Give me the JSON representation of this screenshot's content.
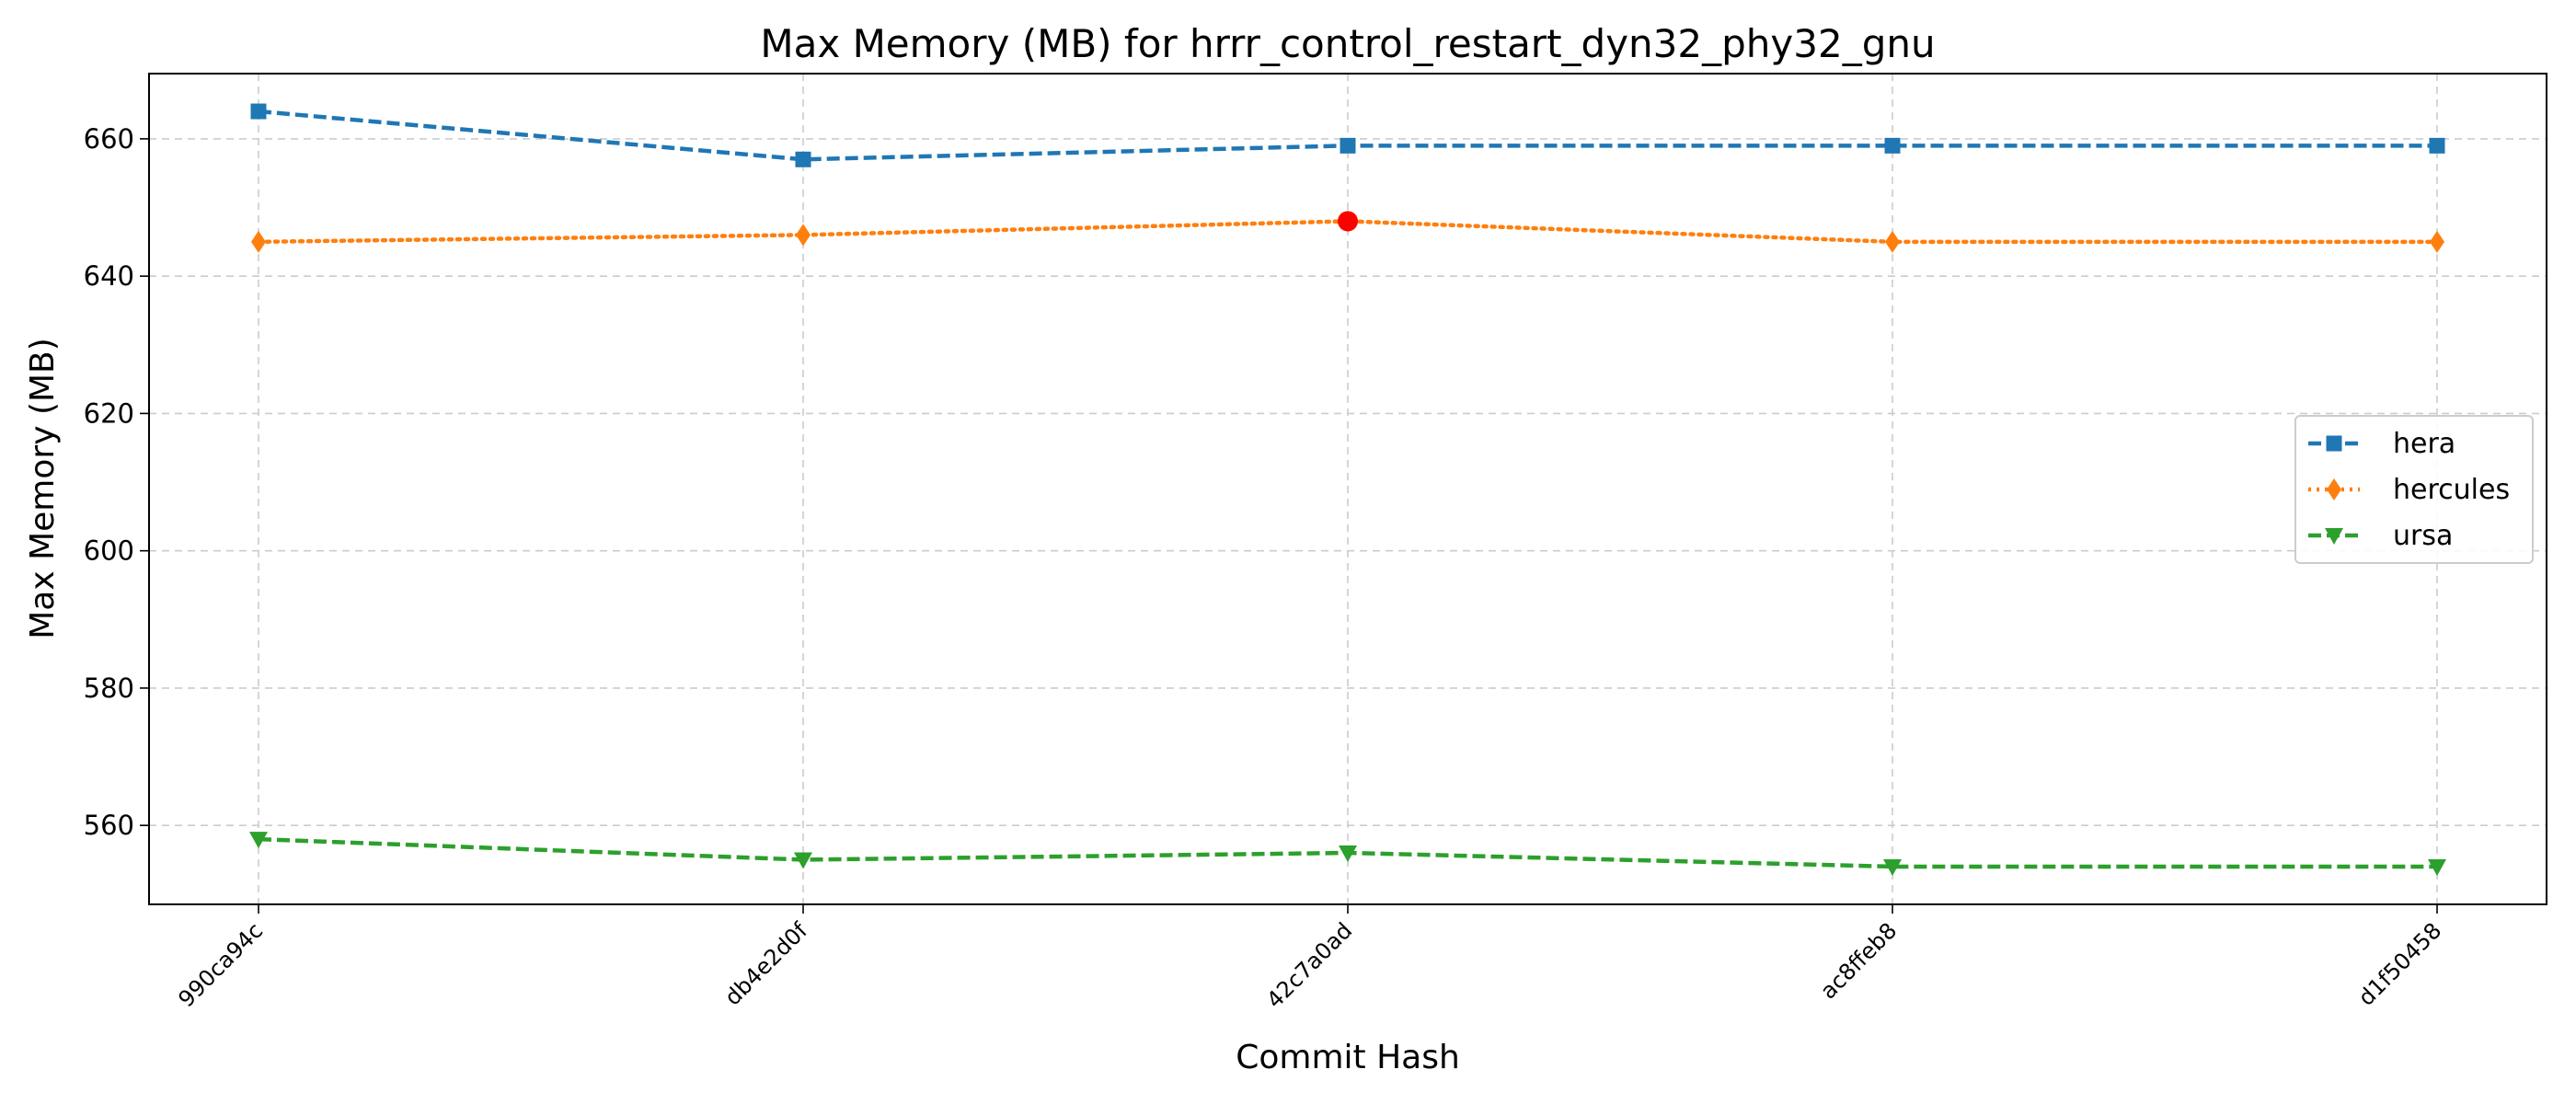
{
  "chart_data": {
    "type": "line",
    "title": "Max Memory (MB) for hrrr_control_restart_dyn32_phy32_gnu",
    "xlabel": "Commit Hash",
    "ylabel": "Max Memory (MB)",
    "categories": [
      "990ca94c",
      "db4e2d0f",
      "42c7a0ad",
      "ac8ffeb8",
      "d1f50458"
    ],
    "ylim": [
      548.5,
      669.5
    ],
    "yticks": [
      560,
      580,
      600,
      620,
      640,
      660
    ],
    "grid": true,
    "legend_position": "center-right",
    "series": [
      {
        "name": "hera",
        "values": [
          664,
          657,
          659,
          659,
          659
        ],
        "color": "#1f77b4",
        "marker": "square",
        "linestyle": "dashed"
      },
      {
        "name": "hercules",
        "values": [
          645,
          646,
          648,
          645,
          645
        ],
        "color": "#ff7f0e",
        "marker": "diamond",
        "linestyle": "dotted"
      },
      {
        "name": "ursa",
        "values": [
          558,
          555,
          556,
          554,
          554
        ],
        "color": "#2ca02c",
        "marker": "triangle-down",
        "linestyle": "dashed"
      }
    ],
    "highlight": {
      "series": "hercules",
      "category": "42c7a0ad",
      "value": 648,
      "color": "#ff0000"
    }
  }
}
